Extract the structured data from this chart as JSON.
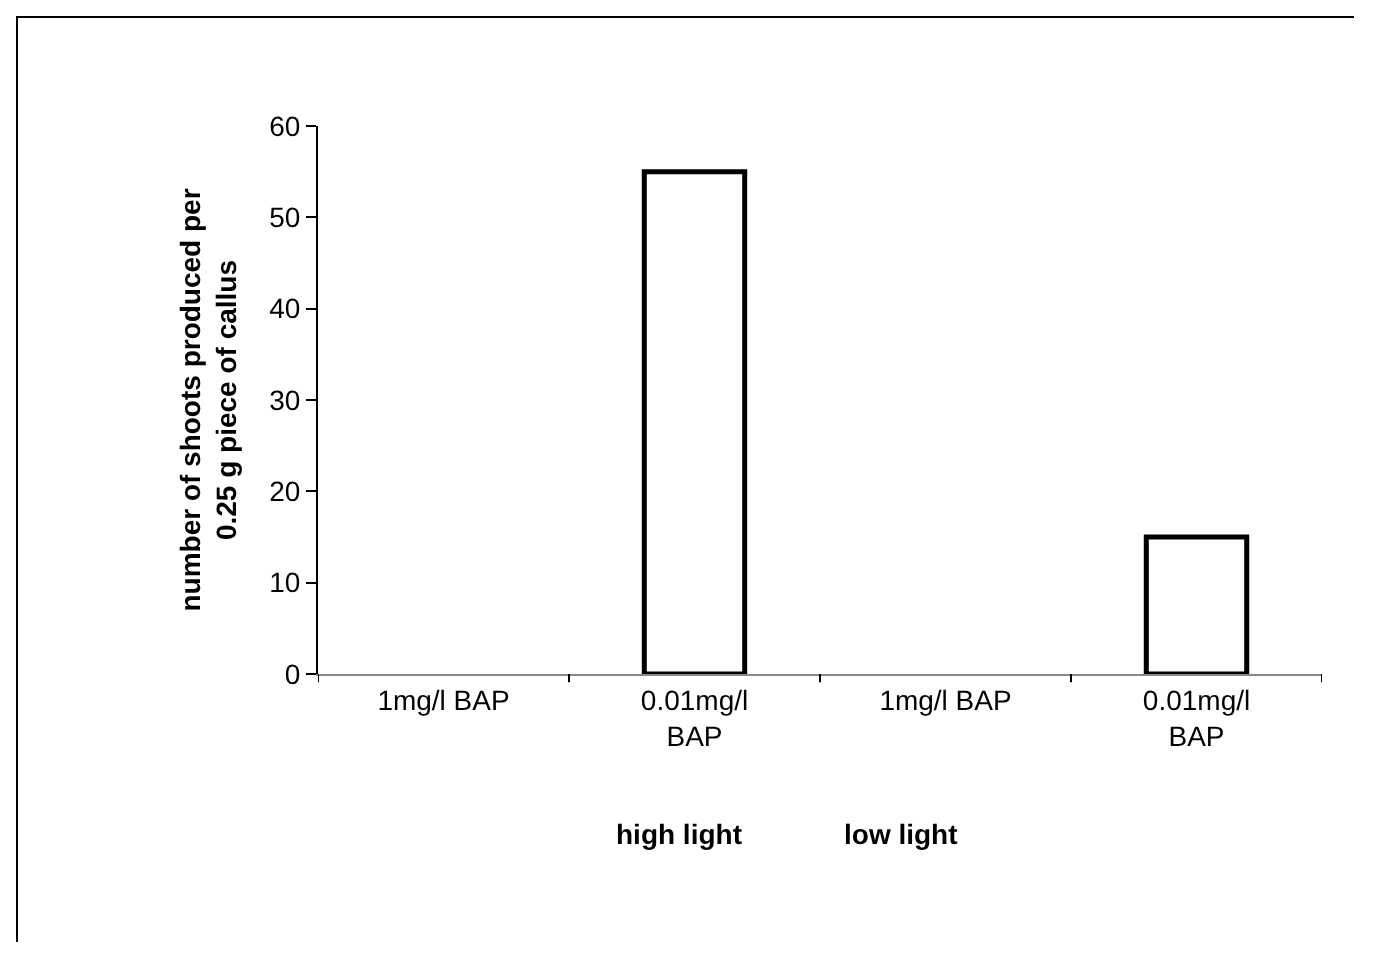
{
  "chart_data": {
    "type": "bar",
    "ylabel": "number of shoots produced per 0.25 g piece of callus",
    "categories": [
      "1mg/l BAP",
      "0.01mg/l BAP",
      "1mg/l BAP",
      "0.01mg/l BAP"
    ],
    "values": [
      0,
      55,
      0,
      15
    ],
    "color": "#ffffff",
    "ylim": [
      0,
      60
    ],
    "yticks": [
      0,
      10,
      20,
      30,
      40,
      50,
      60
    ],
    "grid": false,
    "annotations": [
      "high light",
      "low light"
    ]
  }
}
